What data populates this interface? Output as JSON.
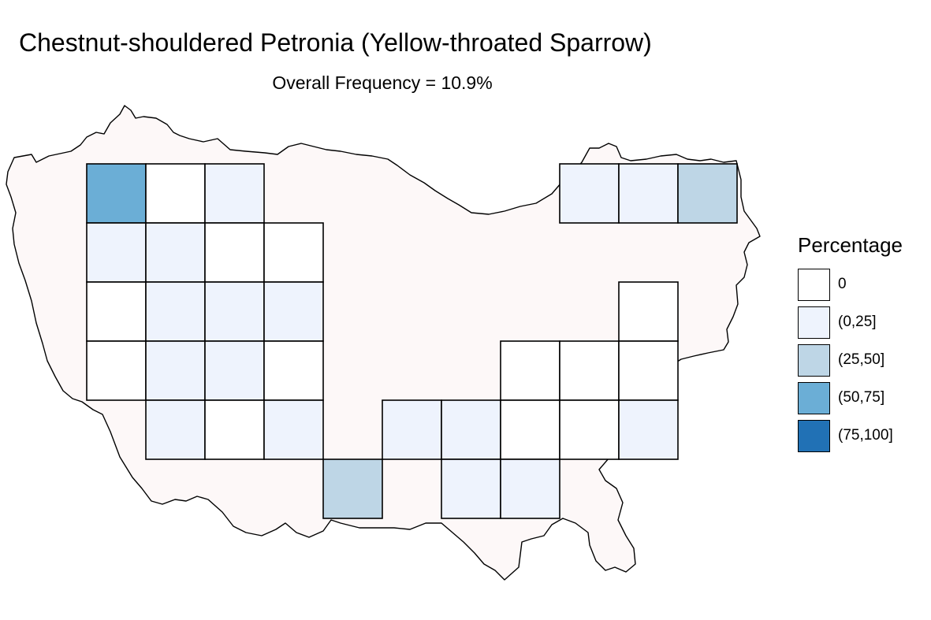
{
  "title": "Chestnut-shouldered Petronia (Yellow-throated Sparrow)",
  "subtitle": "Overall Frequency = 10.9%",
  "colors": {
    "region_fill": "#fdf8f8",
    "outline": "#000000"
  },
  "legend": {
    "title": "Percentage",
    "items": [
      {
        "label": "0",
        "color": "#ffffff"
      },
      {
        "label": "(0,25]",
        "color": "#eef3fd"
      },
      {
        "label": "(25,50]",
        "color": "#bed6e6"
      },
      {
        "label": "(50,75]",
        "color": "#6baed6"
      },
      {
        "label": "(75,100]",
        "color": "#2171b5"
      }
    ]
  },
  "grid_cells": [
    {
      "col": 0,
      "row": 0,
      "bin": 3
    },
    {
      "col": 1,
      "row": 0,
      "bin": 0
    },
    {
      "col": 2,
      "row": 0,
      "bin": 1
    },
    {
      "col": 8,
      "row": 0,
      "bin": 1
    },
    {
      "col": 9,
      "row": 0,
      "bin": 1
    },
    {
      "col": 10,
      "row": 0,
      "bin": 2
    },
    {
      "col": 0,
      "row": 1,
      "bin": 1
    },
    {
      "col": 1,
      "row": 1,
      "bin": 1
    },
    {
      "col": 2,
      "row": 1,
      "bin": 0
    },
    {
      "col": 3,
      "row": 1,
      "bin": 0
    },
    {
      "col": 0,
      "row": 2,
      "bin": 0
    },
    {
      "col": 1,
      "row": 2,
      "bin": 1
    },
    {
      "col": 2,
      "row": 2,
      "bin": 1
    },
    {
      "col": 3,
      "row": 2,
      "bin": 1
    },
    {
      "col": 9,
      "row": 2,
      "bin": 0
    },
    {
      "col": 0,
      "row": 3,
      "bin": 0
    },
    {
      "col": 1,
      "row": 3,
      "bin": 1
    },
    {
      "col": 2,
      "row": 3,
      "bin": 1
    },
    {
      "col": 3,
      "row": 3,
      "bin": 0
    },
    {
      "col": 7,
      "row": 3,
      "bin": 0
    },
    {
      "col": 8,
      "row": 3,
      "bin": 0
    },
    {
      "col": 9,
      "row": 3,
      "bin": 0
    },
    {
      "col": 1,
      "row": 4,
      "bin": 1
    },
    {
      "col": 2,
      "row": 4,
      "bin": 0
    },
    {
      "col": 3,
      "row": 4,
      "bin": 1
    },
    {
      "col": 5,
      "row": 4,
      "bin": 1
    },
    {
      "col": 6,
      "row": 4,
      "bin": 1
    },
    {
      "col": 7,
      "row": 4,
      "bin": 0
    },
    {
      "col": 8,
      "row": 4,
      "bin": 0
    },
    {
      "col": 9,
      "row": 4,
      "bin": 1
    },
    {
      "col": 4,
      "row": 5,
      "bin": 2
    },
    {
      "col": 6,
      "row": 5,
      "bin": 1
    },
    {
      "col": 7,
      "row": 5,
      "bin": 1
    }
  ]
}
